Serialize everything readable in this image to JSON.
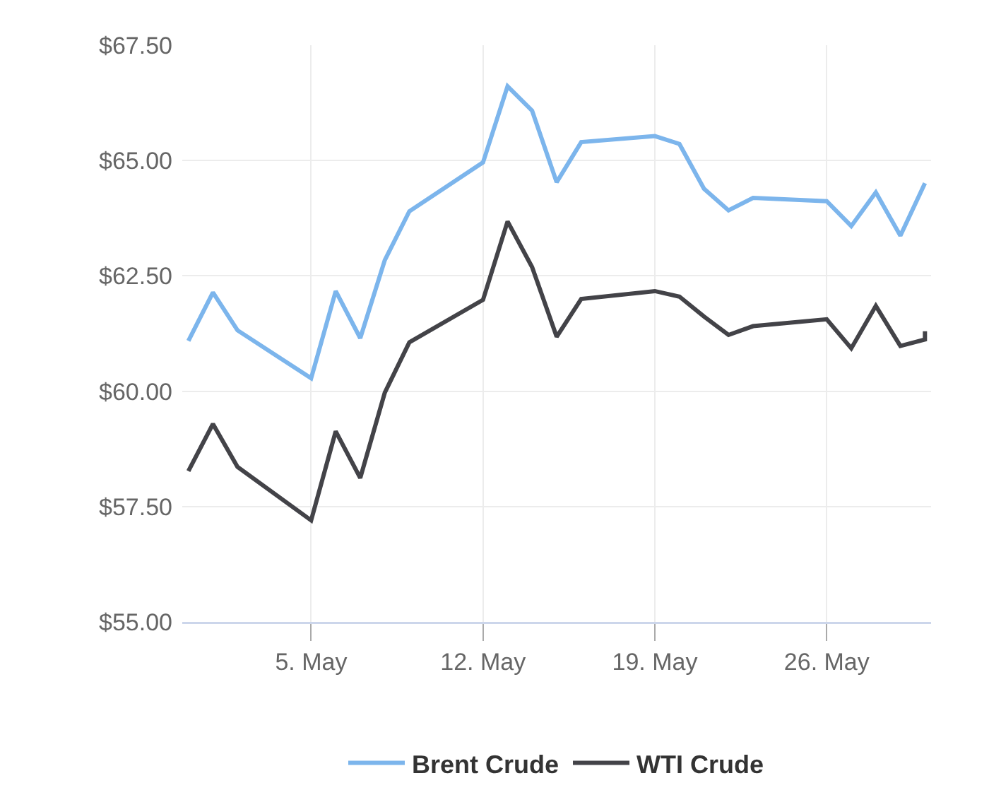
{
  "chart_data": {
    "type": "line",
    "x": [
      "--04-30",
      "--05-01",
      "--05-02",
      "--05-05",
      "--05-06",
      "--05-07",
      "--05-08",
      "--05-09",
      "--05-12",
      "--05-13",
      "--05-14",
      "--05-15",
      "--05-16",
      "--05-19",
      "--05-20",
      "--05-21",
      "--05-22",
      "--05-23",
      "--05-26",
      "--05-27",
      "--05-28",
      "--05-29",
      "--05-30"
    ],
    "series": [
      {
        "name": "Brent Crude",
        "color": "#7cb5ec",
        "values": [
          61.09,
          62.14,
          61.32,
          60.28,
          62.17,
          61.15,
          62.84,
          63.9,
          64.96,
          66.61,
          66.08,
          64.53,
          65.4,
          65.53,
          65.36,
          64.39,
          63.92,
          64.19,
          64.12,
          63.58,
          64.31,
          63.37,
          64.51
        ]
      },
      {
        "name": "WTI Crude",
        "color": "#434348",
        "x": [
          "--04-30",
          "--05-01",
          "--05-02",
          "--05-05",
          "--05-06",
          "--05-07",
          "--05-08",
          "--05-09",
          "--05-12",
          "--05-13",
          "--05-14",
          "--05-15",
          "--05-16",
          "--05-19",
          "--05-20",
          "--05-21",
          "--05-22",
          "--05-23",
          "--05-26",
          "--05-27",
          "--05-28",
          "--05-29",
          "--05-30",
          "--05-30"
        ],
        "values": [
          58.27,
          59.29,
          58.36,
          57.2,
          59.13,
          58.12,
          59.97,
          61.06,
          61.98,
          63.68,
          62.69,
          61.18,
          62.0,
          62.17,
          62.05,
          61.62,
          61.22,
          61.41,
          61.56,
          60.93,
          61.85,
          60.98,
          61.12,
          61.3
        ]
      }
    ],
    "xlim": [
      "--04-29T18:00",
      "--05-30T06:00"
    ],
    "xticks": [
      {
        "value": "--05-05",
        "label": "5. May"
      },
      {
        "value": "--05-12",
        "label": "12. May"
      },
      {
        "value": "--05-19",
        "label": "19. May"
      },
      {
        "value": "--05-26",
        "label": "26. May"
      }
    ],
    "ylim": [
      55,
      67.5
    ],
    "yticks": [
      {
        "value": 55,
        "label": "$55.00"
      },
      {
        "value": 57.5,
        "label": "$57.50"
      },
      {
        "value": 60,
        "label": "$60.00"
      },
      {
        "value": 62.5,
        "label": "$62.50"
      },
      {
        "value": 65,
        "label": "$65.00"
      },
      {
        "value": 67.5,
        "label": "$67.50"
      }
    ],
    "grid": true,
    "legend": "bottom",
    "marker": "none",
    "line_style": "solid"
  }
}
